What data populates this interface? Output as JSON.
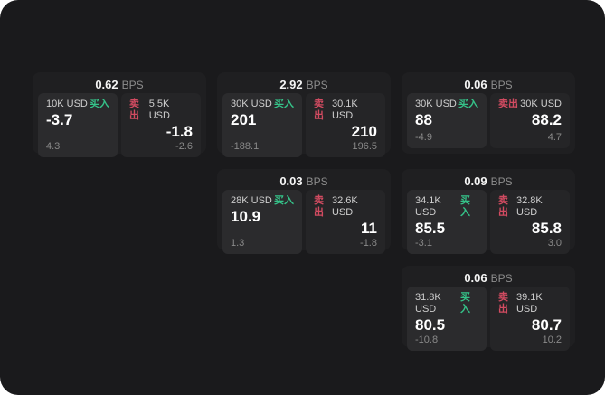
{
  "labels": {
    "bps_unit": "BPS",
    "buy": "买入",
    "sell": "卖出"
  },
  "colors": {
    "page_background": "#ffffff",
    "panel_background": "#1a1a1c",
    "card_background": "#1f1f21",
    "buy_panel_background": "#2b2b2d",
    "sell_panel_background": "#252527",
    "buy_green": "#35c389",
    "sell_red": "#d24b61",
    "price_white": "#ffffff",
    "muted_gray": "#8a8a8a"
  },
  "cards": [
    {
      "bps": "0.62",
      "buy": {
        "notional": "10K USD",
        "price": "-3.7",
        "delta": "4.3"
      },
      "sell": {
        "notional": "5.5K USD",
        "price": "-1.8",
        "delta": "-2.6"
      }
    },
    {
      "bps": "2.92",
      "buy": {
        "notional": "30K USD",
        "price": "201",
        "delta": "-188.1"
      },
      "sell": {
        "notional": "30.1K USD",
        "price": "210",
        "delta": "196.5"
      }
    },
    {
      "bps": "0.03",
      "buy": {
        "notional": "28K USD",
        "price": "10.9",
        "delta": "1.3"
      },
      "sell": {
        "notional": "32.6K USD",
        "price": "11",
        "delta": "-1.8"
      }
    },
    {
      "bps": "0.06",
      "buy": {
        "notional": "30K USD",
        "price": "88",
        "delta": "-4.9"
      },
      "sell": {
        "notional": "30K USD",
        "price": "88.2",
        "delta": "4.7"
      }
    },
    {
      "bps": "0.09",
      "buy": {
        "notional": "34.1K USD",
        "price": "85.5",
        "delta": "-3.1"
      },
      "sell": {
        "notional": "32.8K USD",
        "price": "85.8",
        "delta": "3.0"
      }
    },
    {
      "bps": "0.06",
      "buy": {
        "notional": "31.8K USD",
        "price": "80.5",
        "delta": "-10.8"
      },
      "sell": {
        "notional": "39.1K USD",
        "price": "80.7",
        "delta": "10.2"
      }
    }
  ]
}
